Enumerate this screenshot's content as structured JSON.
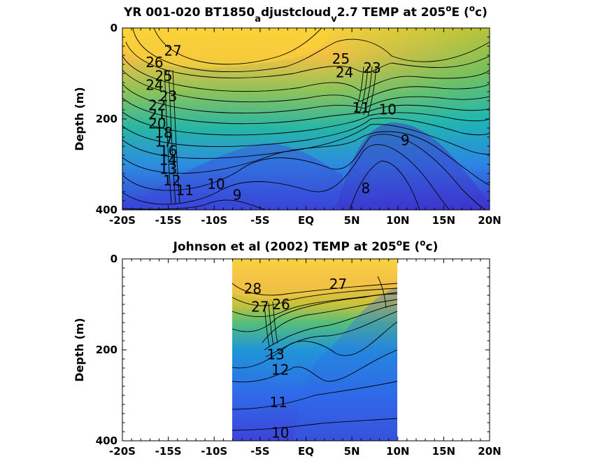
{
  "chart_data": [
    {
      "type": "contour",
      "title_parts": [
        "YR 001-020 BT1850",
        "a",
        "djustcloud",
        "v",
        "2.7 TEMP at 205",
        "o",
        "E (",
        "o",
        "c)"
      ],
      "ylabel": "Depth (m)",
      "xlim": [
        -20,
        20
      ],
      "ylim": [
        400,
        0
      ],
      "xticks": [
        -20,
        -15,
        -10,
        -5,
        0,
        5,
        10,
        15,
        20
      ],
      "xtick_labels": [
        "-20S",
        "-15S",
        "-10S",
        "-5S",
        "EQ",
        "5N",
        "10N",
        "15N",
        "20N"
      ],
      "yticks": [
        0,
        200,
        400
      ],
      "ytick_labels": [
        "0",
        "200",
        "400"
      ],
      "data_lon_range": [
        -20,
        20
      ],
      "contour_labels": [
        {
          "text": "27",
          "x": -14.5,
          "y": 50
        },
        {
          "text": "26",
          "x": -16.5,
          "y": 75
        },
        {
          "text": "25",
          "x": -15.5,
          "y": 105
        },
        {
          "text": "24",
          "x": -16.5,
          "y": 125
        },
        {
          "text": "23",
          "x": -15.0,
          "y": 150
        },
        {
          "text": "22",
          "x": -16.2,
          "y": 170
        },
        {
          "text": "21",
          "x": -16.2,
          "y": 190
        },
        {
          "text": "20",
          "x": -16.2,
          "y": 210
        },
        {
          "text": "18",
          "x": -15.5,
          "y": 230
        },
        {
          "text": "17",
          "x": -15.5,
          "y": 250
        },
        {
          "text": "16",
          "x": -15.0,
          "y": 270
        },
        {
          "text": "14",
          "x": -15.0,
          "y": 290
        },
        {
          "text": "13",
          "x": -15.0,
          "y": 310
        },
        {
          "text": "12",
          "x": -14.6,
          "y": 335
        },
        {
          "text": "11",
          "x": -13.2,
          "y": 357
        },
        {
          "text": "10",
          "x": -9.8,
          "y": 343
        },
        {
          "text": "9",
          "x": -7.5,
          "y": 367
        },
        {
          "text": "25",
          "x": 3.8,
          "y": 68
        },
        {
          "text": "24",
          "x": 4.2,
          "y": 98
        },
        {
          "text": "23",
          "x": 7.2,
          "y": 88
        },
        {
          "text": "11",
          "x": 6.0,
          "y": 175
        },
        {
          "text": "10",
          "x": 8.9,
          "y": 179
        },
        {
          "text": "9",
          "x": 10.8,
          "y": 247
        },
        {
          "text": "8",
          "x": 6.5,
          "y": 352
        }
      ],
      "colormap": "parula",
      "temperature_range": [
        8,
        28
      ]
    },
    {
      "type": "contour",
      "title_parts": [
        "Johnson et al (2002) TEMP at 205",
        "o",
        "E (",
        "o",
        "c)"
      ],
      "ylabel": "Depth (m)",
      "xlim": [
        -20,
        20
      ],
      "ylim": [
        400,
        0
      ],
      "xticks": [
        -20,
        -15,
        -10,
        -5,
        0,
        5,
        10,
        15,
        20
      ],
      "xtick_labels": [
        "-20S",
        "-15S",
        "-10S",
        "-5S",
        "EQ",
        "5N",
        "10N",
        "15N",
        "20N"
      ],
      "yticks": [
        0,
        200,
        400
      ],
      "ytick_labels": [
        "0",
        "200",
        "400"
      ],
      "data_lon_range": [
        -8,
        10
      ],
      "contour_labels": [
        {
          "text": "28",
          "x": -5.8,
          "y": 65
        },
        {
          "text": "27",
          "x": -5.0,
          "y": 105
        },
        {
          "text": "26",
          "x": -2.7,
          "y": 100
        },
        {
          "text": "27",
          "x": 3.5,
          "y": 55
        },
        {
          "text": "13",
          "x": -3.3,
          "y": 210
        },
        {
          "text": "12",
          "x": -2.8,
          "y": 244
        },
        {
          "text": "11",
          "x": -3.0,
          "y": 315
        },
        {
          "text": "10",
          "x": -2.8,
          "y": 382
        }
      ],
      "colormap": "parula",
      "temperature_range": [
        8,
        28
      ]
    }
  ]
}
